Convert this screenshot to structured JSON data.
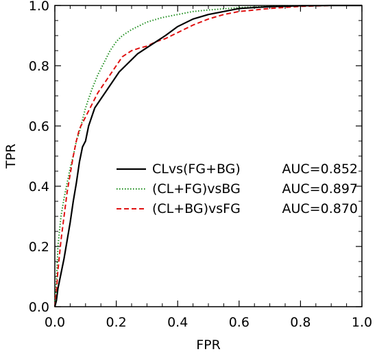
{
  "chart_data": {
    "type": "line",
    "xlabel": "FPR",
    "ylabel": "TPR",
    "xlim": [
      0.0,
      1.0
    ],
    "ylim": [
      0.0,
      1.0
    ],
    "x_ticks": [
      "0.0",
      "0.2",
      "0.4",
      "0.6",
      "0.8",
      "1.0"
    ],
    "y_ticks": [
      "0.0",
      "0.2",
      "0.4",
      "0.6",
      "0.8",
      "1.0"
    ],
    "grid": false,
    "legend_position": "center-right",
    "series": [
      {
        "name": "CLvs(FG+BG)",
        "auc": "AUC=0.852",
        "color": "#000000",
        "dash": "solid",
        "x": [
          0.0,
          0.005,
          0.01,
          0.02,
          0.03,
          0.04,
          0.05,
          0.06,
          0.07,
          0.08,
          0.09,
          0.1,
          0.11,
          0.12,
          0.13,
          0.15,
          0.17,
          0.19,
          0.21,
          0.23,
          0.25,
          0.27,
          0.3,
          0.33,
          0.36,
          0.4,
          0.45,
          0.5,
          0.55,
          0.6,
          0.65,
          0.7,
          0.8,
          0.9,
          1.0
        ],
        "y": [
          0.0,
          0.02,
          0.06,
          0.11,
          0.16,
          0.22,
          0.28,
          0.35,
          0.41,
          0.48,
          0.53,
          0.55,
          0.6,
          0.63,
          0.66,
          0.69,
          0.72,
          0.75,
          0.78,
          0.8,
          0.82,
          0.84,
          0.86,
          0.88,
          0.9,
          0.93,
          0.955,
          0.97,
          0.98,
          0.99,
          0.993,
          0.996,
          0.999,
          1.0,
          1.0
        ]
      },
      {
        "name": "(CL+FG)vsBG",
        "auc": "AUC=0.897",
        "color": "#1a8c1a",
        "dash": "dotted",
        "x": [
          0.0,
          0.005,
          0.01,
          0.02,
          0.03,
          0.04,
          0.05,
          0.06,
          0.07,
          0.08,
          0.09,
          0.1,
          0.12,
          0.14,
          0.16,
          0.18,
          0.2,
          0.22,
          0.25,
          0.28,
          0.3,
          0.35,
          0.4,
          0.45,
          0.5,
          0.6,
          0.7,
          0.8,
          0.9,
          1.0
        ],
        "y": [
          0.0,
          0.08,
          0.2,
          0.3,
          0.36,
          0.41,
          0.46,
          0.5,
          0.55,
          0.58,
          0.62,
          0.66,
          0.72,
          0.77,
          0.81,
          0.85,
          0.88,
          0.9,
          0.92,
          0.935,
          0.945,
          0.96,
          0.97,
          0.98,
          0.985,
          0.993,
          0.997,
          0.999,
          1.0,
          1.0
        ]
      },
      {
        "name": "(CL+BG)vsFG",
        "auc": "AUC=0.870",
        "color": "#e01010",
        "dash": "dashed",
        "x": [
          0.0,
          0.005,
          0.01,
          0.02,
          0.03,
          0.04,
          0.05,
          0.06,
          0.07,
          0.08,
          0.1,
          0.12,
          0.14,
          0.16,
          0.18,
          0.2,
          0.22,
          0.25,
          0.28,
          0.3,
          0.33,
          0.36,
          0.4,
          0.45,
          0.5,
          0.55,
          0.6,
          0.7,
          0.8,
          0.9,
          1.0
        ],
        "y": [
          0.0,
          0.05,
          0.12,
          0.22,
          0.3,
          0.38,
          0.44,
          0.5,
          0.55,
          0.59,
          0.63,
          0.67,
          0.71,
          0.74,
          0.77,
          0.8,
          0.83,
          0.85,
          0.86,
          0.865,
          0.88,
          0.89,
          0.91,
          0.935,
          0.955,
          0.97,
          0.98,
          0.99,
          0.997,
          1.0,
          1.0
        ]
      }
    ]
  }
}
